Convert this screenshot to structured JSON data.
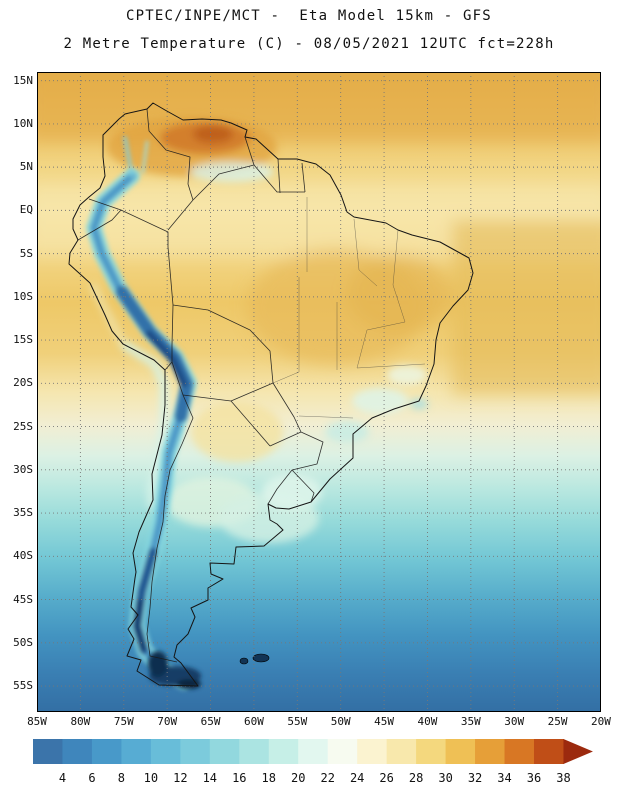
{
  "titles": {
    "line1": "CPTEC/INPE/MCT -  Eta Model 15km - GFS",
    "line2": "2 Metre Temperature (C) - 08/05/2021 12UTC fct=228h"
  },
  "axes": {
    "lat_ticks": [
      "15N",
      "10N",
      "5N",
      "EQ",
      "5S",
      "10S",
      "15S",
      "20S",
      "25S",
      "30S",
      "35S",
      "40S",
      "45S",
      "50S",
      "55S"
    ],
    "lon_ticks": [
      "85W",
      "80W",
      "75W",
      "70W",
      "65W",
      "60W",
      "55W",
      "50W",
      "45W",
      "40W",
      "35W",
      "30W",
      "25W",
      "20W"
    ]
  },
  "colorbar": {
    "tick_values": [
      "4",
      "6",
      "8",
      "10",
      "12",
      "14",
      "16",
      "18",
      "20",
      "22",
      "24",
      "26",
      "28",
      "30",
      "32",
      "34",
      "36",
      "38"
    ],
    "segment_colors": [
      "#3B74AA",
      "#3F86BC",
      "#4899C9",
      "#57ACD3",
      "#68BDD9",
      "#7CCBDC",
      "#92D8DE",
      "#ABE4E2",
      "#C6EFE7",
      "#E2F7EF",
      "#F7FBF0",
      "#FBF3D0",
      "#F8E8AC",
      "#F4D87E",
      "#EFC055",
      "#E69F38",
      "#D87724",
      "#C04E17",
      "#9C2A0E"
    ]
  },
  "colors": {
    "background": "#ffffff",
    "grid_line": "#777777",
    "coastline": "#151515",
    "frame": "#000000",
    "text": "#111111"
  }
}
